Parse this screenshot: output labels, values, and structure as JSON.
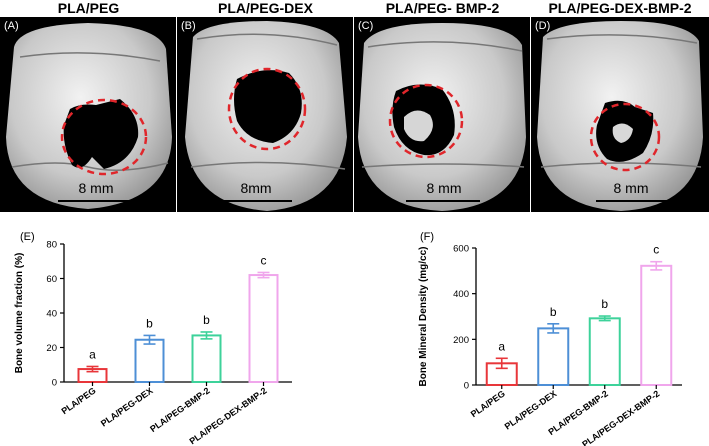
{
  "column_titles": [
    "PLA/PEG",
    "PLA/PEG-DEX",
    "PLA/PEG- BMP-2",
    "PLA/PEG-DEX-BMP-2"
  ],
  "panel_labels": [
    "(A)",
    "(B)",
    "(C)",
    "(D)"
  ],
  "scale_labels": [
    "8 mm",
    "8mm",
    "8 mm",
    "8 mm"
  ],
  "colors": {
    "PLA/PEG": "#e8363a",
    "PLA/PEG-DEX": "#4d8fd6",
    "PLA/PEG-BMP-2": "#3dd29a",
    "PLA/PEG-DEX-BMP-2": "#f0a6ec",
    "defect_circle": "#e0262b"
  },
  "chart_data": [
    {
      "type": "bar",
      "panel_label": "(E)",
      "ylabel": "Bone volume fraction (%)",
      "categories": [
        "PLA/PEG",
        "PLA/PEG-DEX",
        "PLA/PEG-BMP-2",
        "PLA/PEG-DEX-BMP-2"
      ],
      "values": [
        7.5,
        24.5,
        27,
        62
      ],
      "errors": [
        1.5,
        2.5,
        2,
        1.5
      ],
      "significance": [
        "a",
        "b",
        "b",
        "c"
      ],
      "ylim": [
        0,
        80
      ],
      "yticks": [
        "0",
        "20",
        "40",
        "60",
        "80"
      ],
      "grid": false
    },
    {
      "type": "bar",
      "panel_label": "(F)",
      "ylabel": "Bone Mineral Density (mg/cc)",
      "categories": [
        "PLA/PEG",
        "PLA/PEG-DEX",
        "PLA/PEG-BMP-2",
        "PLA/PEG-DEX-BMP-2"
      ],
      "values": [
        95,
        248,
        292,
        522
      ],
      "errors": [
        22,
        20,
        10,
        18
      ],
      "significance": [
        "a",
        "b",
        "b",
        "c"
      ],
      "ylim": [
        0,
        600
      ],
      "yticks": [
        "0",
        "200",
        "400",
        "600"
      ],
      "grid": false
    }
  ]
}
